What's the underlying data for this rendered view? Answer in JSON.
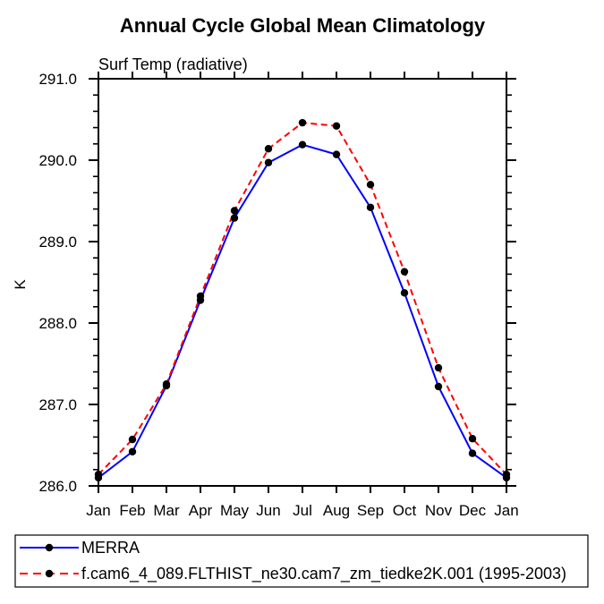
{
  "title": "Annual Cycle Global Mean Climatology",
  "subtitle": "Surf Temp (radiative)",
  "ylabel": "K",
  "chart_data": {
    "type": "line",
    "categories": [
      "Jan",
      "Feb",
      "Mar",
      "Apr",
      "May",
      "Jun",
      "Jul",
      "Aug",
      "Sep",
      "Oct",
      "Nov",
      "Dec",
      "Jan"
    ],
    "series": [
      {
        "name": "MERRA",
        "color": "#0000ff",
        "line_style": "solid",
        "marker": "filled-circle",
        "values": [
          286.1,
          286.42,
          287.23,
          288.28,
          289.29,
          289.97,
          290.19,
          290.07,
          289.42,
          288.37,
          287.22,
          286.4,
          286.1
        ]
      },
      {
        "name": "f.cam6_4_089.FLTHIST_ne30.cam7_zm_tiedke2K.001 (1995-2003)",
        "color": "#ff0000",
        "line_style": "dashed",
        "marker": "filled-circle",
        "values": [
          286.14,
          286.57,
          287.25,
          288.33,
          289.38,
          290.14,
          290.46,
          290.42,
          289.7,
          288.63,
          287.45,
          286.58,
          286.14
        ]
      }
    ],
    "xlabel": "",
    "ylim": [
      286.0,
      291.0
    ],
    "ytick_major": [
      286.0,
      287.0,
      288.0,
      289.0,
      290.0,
      291.0
    ],
    "ytick_labels": [
      "286.0",
      "287.0",
      "288.0",
      "289.0",
      "290.0",
      "291.0"
    ],
    "ytick_minor_step": 0.2,
    "grid": false,
    "marker_color": "#000000",
    "legend_position": "bottom-left-box"
  }
}
